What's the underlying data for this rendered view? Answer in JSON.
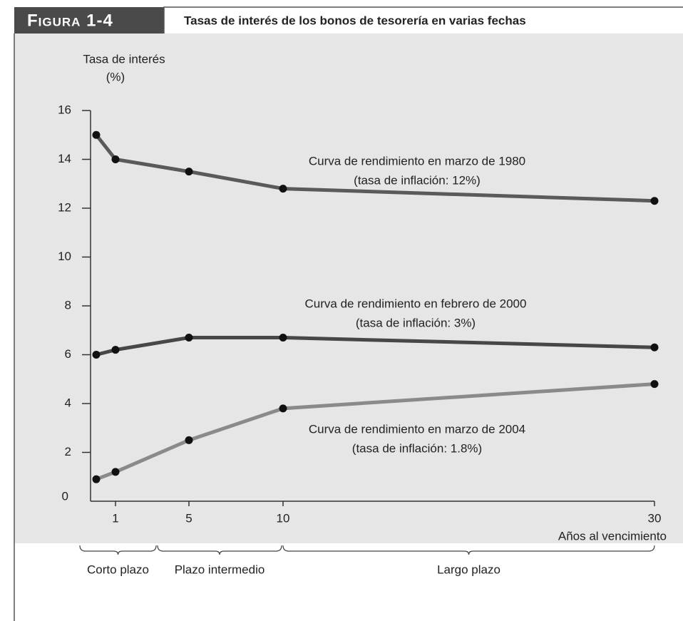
{
  "figure_label": "Figura 1-4",
  "chart_data": {
    "type": "line",
    "title": "Tasas de interés de los bonos de tesorería en varias fechas",
    "y_label": [
      "Tasa de interés",
      "(%)"
    ],
    "x_label": "Años al vencimiento",
    "categories": [
      null,
      "1",
      "5",
      "10",
      "30"
    ],
    "series": [
      {
        "name": "Curva de rendimiento en marzo de 1980",
        "note": "(tasa de inflación: 12%)",
        "color": "#5a5a5a",
        "values": [
          15,
          14,
          13.5,
          12.8,
          12.3
        ]
      },
      {
        "name": "Curva de rendimiento en febrero de 2000",
        "note": "(tasa de inflación: 3%)",
        "color": "#474747",
        "values": [
          6,
          6.2,
          6.7,
          6.7,
          6.3
        ]
      },
      {
        "name": "Curva de rendimiento en marzo de 2004",
        "note": "(tasa de inflación: 1.8%)",
        "color": "#8a8a8a",
        "values": [
          0.9,
          1.2,
          2.5,
          3.8,
          4.8
        ]
      }
    ],
    "ylim": [
      0,
      16
    ],
    "yticks": [
      0,
      2,
      4,
      6,
      8,
      10,
      12,
      14,
      16
    ],
    "x_groups": [
      "Corto plazo",
      "Plazo intermedio",
      "Largo plazo"
    ]
  }
}
